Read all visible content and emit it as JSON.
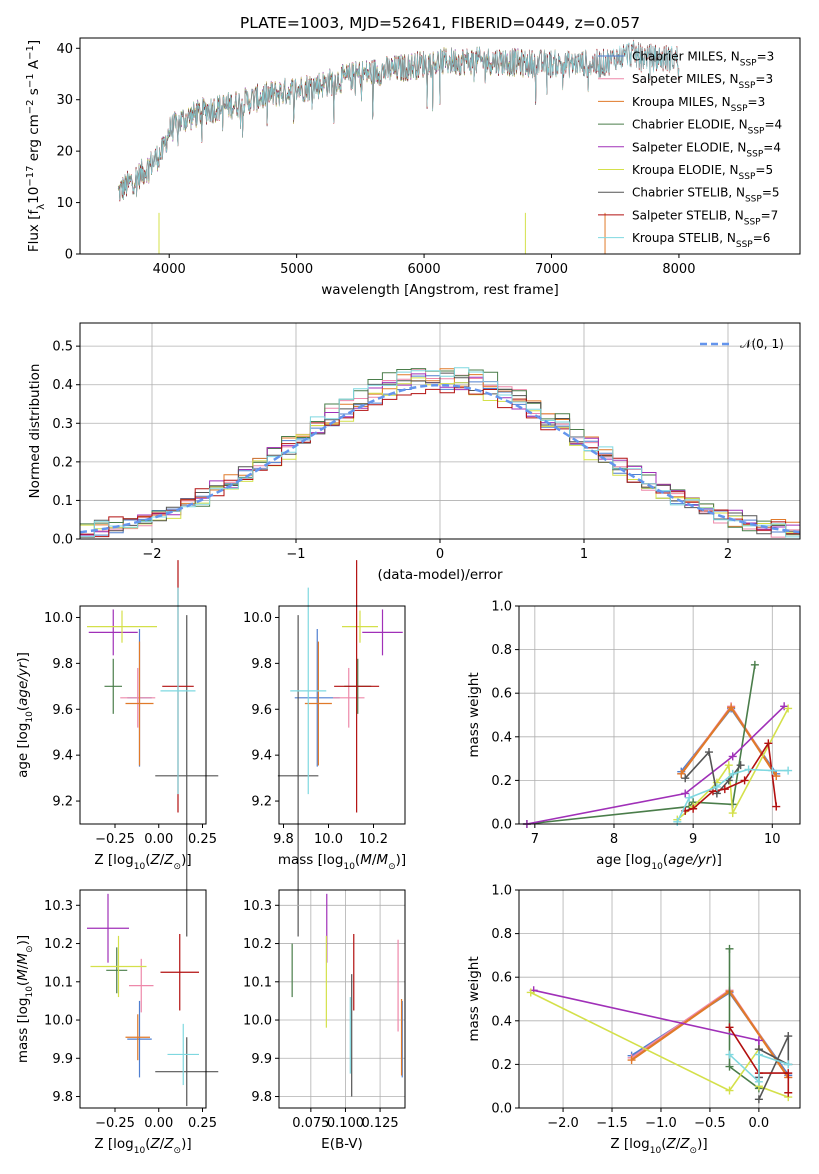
{
  "colors": {
    "Chabrier MILES": "#4f7fd0",
    "Salpeter MILES": "#ee88aa",
    "Kroupa MILES": "#e07a2a",
    "Chabrier ELODIE": "#4a7d4a",
    "Salpeter ELODIE": "#a030b8",
    "Kroupa ELODIE": "#d4e04a",
    "Chabrier STELIB": "#545454",
    "Salpeter STELIB": "#b21010",
    "Kroupa STELIB": "#7fd8e0"
  },
  "chart_data": [
    {
      "type": "line",
      "title": "PLATE=1003, MJD=52641, FIBERID=0449, z=0.057",
      "xlabel": "wavelength [Angstrom, rest frame]",
      "ylabel": "Flux [f_λ10^-17 erg cm^-2 s^-1 A^-1]",
      "xlim": [
        3300,
        8950
      ],
      "ylim": [
        0,
        42
      ],
      "xticks": [
        4000,
        5000,
        6000,
        7000,
        8000
      ],
      "yticks": [
        0,
        10,
        20,
        30,
        40
      ],
      "legend_position": "right",
      "spectrum_anchors": {
        "x": [
          3600,
          3700,
          3800,
          3950,
          4000,
          4100,
          4300,
          4500,
          4800,
          5000,
          5200,
          5500,
          5800,
          6000,
          6200,
          6400,
          6600,
          6800,
          7000,
          7200,
          7400,
          7600,
          7800
        ],
        "y": [
          12,
          14,
          16,
          20,
          24,
          26,
          28,
          29,
          31,
          32,
          33,
          35,
          36,
          37,
          37.5,
          37.5,
          37.5,
          37,
          37,
          37,
          37,
          39,
          38
        ]
      },
      "series": [
        {
          "name": "Chabrier MILES",
          "nssp": "3",
          "xrange": [
            3600,
            7420
          ]
        },
        {
          "name": "Salpeter MILES",
          "nssp": "3",
          "xrange": [
            3600,
            7420
          ]
        },
        {
          "name": "Kroupa MILES",
          "nssp": "3",
          "xrange": [
            3600,
            7420
          ]
        },
        {
          "name": "Chabrier ELODIE",
          "nssp": "4",
          "xrange": [
            3600,
            6800
          ]
        },
        {
          "name": "Salpeter ELODIE",
          "nssp": "4",
          "xrange": [
            3600,
            6800
          ]
        },
        {
          "name": "Kroupa ELODIE",
          "nssp": "5",
          "xrange": [
            3600,
            6800
          ]
        },
        {
          "name": "Chabrier STELIB",
          "nssp": "5",
          "xrange": [
            3600,
            8000
          ]
        },
        {
          "name": "Salpeter STELIB",
          "nssp": "7",
          "xrange": [
            3600,
            8000
          ]
        },
        {
          "name": "Kroupa STELIB",
          "nssp": "6",
          "xrange": [
            3600,
            8000
          ]
        }
      ]
    },
    {
      "type": "line",
      "xlabel": "(data-model)/error",
      "ylabel": "Normed distribution",
      "xlim": [
        -2.5,
        2.5
      ],
      "ylim": [
        0,
        0.56
      ],
      "xticks": [
        -2,
        -1,
        0,
        1,
        2
      ],
      "yticks": [
        0.0,
        0.1,
        0.2,
        0.3,
        0.4,
        0.5
      ],
      "grid": true,
      "legend_position": "top-right",
      "reference": {
        "name": "𝒩(0, 1)",
        "mu": 0,
        "sigma": 1
      },
      "bin_width": 0.1,
      "series": [
        {
          "name": "Chabrier MILES",
          "amp": 0.41,
          "sigma": 1.0
        },
        {
          "name": "Salpeter MILES",
          "amp": 0.43,
          "sigma": 0.98
        },
        {
          "name": "Kroupa MILES",
          "amp": 0.42,
          "sigma": 1.01
        },
        {
          "name": "Chabrier ELODIE",
          "amp": 0.45,
          "sigma": 0.97
        },
        {
          "name": "Salpeter ELODIE",
          "amp": 0.41,
          "sigma": 1.03
        },
        {
          "name": "Kroupa ELODIE",
          "amp": 0.4,
          "sigma": 0.99
        },
        {
          "name": "Chabrier STELIB",
          "amp": 0.42,
          "sigma": 1.0
        },
        {
          "name": "Salpeter STELIB",
          "amp": 0.4,
          "sigma": 1.02
        },
        {
          "name": "Kroupa STELIB",
          "amp": 0.43,
          "sigma": 0.99
        }
      ]
    },
    {
      "type": "scatter",
      "xlabel": "Z [log10(Z/Z⊙)]",
      "ylabel": "age [log10(age/yr)]",
      "xlim": [
        -0.45,
        0.27
      ],
      "ylim": [
        9.1,
        10.05
      ],
      "xticks": [
        -0.25,
        0.0,
        0.25
      ],
      "yticks": [
        9.2,
        9.4,
        9.6,
        9.8,
        10.0
      ],
      "points": [
        {
          "series": "Chabrier MILES",
          "x": -0.11,
          "xerr": 0.07,
          "y": 9.65,
          "yerr": 0.3
        },
        {
          "series": "Salpeter MILES",
          "x": -0.12,
          "xerr": 0.1,
          "y": 9.65,
          "yerr": 0.13
        },
        {
          "series": "Kroupa MILES",
          "x": -0.11,
          "xerr": 0.08,
          "y": 9.625,
          "yerr": 0.27
        },
        {
          "series": "Chabrier ELODIE",
          "x": -0.26,
          "xerr": 0.05,
          "y": 9.7,
          "yerr": 0.12
        },
        {
          "series": "Salpeter ELODIE",
          "x": -0.26,
          "xerr": 0.14,
          "y": 9.935,
          "yerr": 0.1
        },
        {
          "series": "Kroupa ELODIE",
          "x": -0.21,
          "xerr": 0.2,
          "y": 9.96,
          "yerr": 0.07
        },
        {
          "series": "Chabrier STELIB",
          "x": 0.16,
          "xerr": 0.18,
          "y": 9.31,
          "yerr": 0.7
        },
        {
          "series": "Salpeter STELIB",
          "x": 0.11,
          "xerr": 0.09,
          "y": 9.7,
          "yerr": 0.55
        },
        {
          "series": "Kroupa STELIB",
          "x": 0.11,
          "xerr": 0.1,
          "y": 9.68,
          "yerr": 0.45
        }
      ]
    },
    {
      "type": "scatter",
      "xlabel": "mass [log10(M/M⊙)]",
      "ylabel": "",
      "xlim": [
        9.78,
        10.34
      ],
      "ylim": [
        9.1,
        10.05
      ],
      "xticks": [
        9.8,
        10.0,
        10.2
      ],
      "yticks": [
        9.2,
        9.4,
        9.6,
        9.8,
        10.0
      ],
      "points": [
        {
          "series": "Chabrier MILES",
          "x": 9.95,
          "xerr": 0.1,
          "y": 9.65,
          "yerr": 0.3
        },
        {
          "series": "Salpeter MILES",
          "x": 10.09,
          "xerr": 0.07,
          "y": 9.65,
          "yerr": 0.13
        },
        {
          "series": "Kroupa MILES",
          "x": 9.955,
          "xerr": 0.06,
          "y": 9.625,
          "yerr": 0.27
        },
        {
          "series": "Chabrier ELODIE",
          "x": 10.13,
          "xerr": 0.06,
          "y": 9.7,
          "yerr": 0.12
        },
        {
          "series": "Salpeter ELODIE",
          "x": 10.24,
          "xerr": 0.09,
          "y": 9.935,
          "yerr": 0.1
        },
        {
          "series": "Kroupa ELODIE",
          "x": 10.14,
          "xerr": 0.08,
          "y": 9.96,
          "yerr": 0.07
        },
        {
          "series": "Chabrier STELIB",
          "x": 9.865,
          "xerr": 0.09,
          "y": 9.31,
          "yerr": 0.7
        },
        {
          "series": "Salpeter STELIB",
          "x": 10.125,
          "xerr": 0.1,
          "y": 9.7,
          "yerr": 0.55
        },
        {
          "series": "Kroupa STELIB",
          "x": 9.91,
          "xerr": 0.08,
          "y": 9.68,
          "yerr": 0.45
        }
      ]
    },
    {
      "type": "line",
      "xlabel": "age [log10(age/yr)]",
      "ylabel": "mass weight",
      "xlim": [
        6.8,
        10.35
      ],
      "ylim": [
        0,
        1.0
      ],
      "xticks": [
        7,
        8,
        9,
        10
      ],
      "yticks": [
        0.0,
        0.2,
        0.4,
        0.6,
        0.8,
        1.0
      ],
      "grid": true,
      "series": [
        {
          "name": "Chabrier MILES",
          "x": [
            8.85,
            9.48,
            10.05
          ],
          "y": [
            0.24,
            0.53,
            0.23
          ]
        },
        {
          "name": "Salpeter MILES",
          "x": [
            8.85,
            9.48,
            10.05
          ],
          "y": [
            0.23,
            0.54,
            0.22
          ]
        },
        {
          "name": "Kroupa MILES",
          "x": [
            8.85,
            9.48,
            10.05
          ],
          "y": [
            0.23,
            0.535,
            0.22
          ]
        },
        {
          "name": "Chabrier ELODIE",
          "x": [
            6.9,
            8.95,
            9.0,
            9.5,
            9.78
          ],
          "y": [
            0.0,
            0.08,
            0.1,
            0.09,
            0.73
          ]
        },
        {
          "name": "Salpeter ELODIE",
          "x": [
            6.9,
            8.9,
            9.5,
            10.15
          ],
          "y": [
            0.0,
            0.14,
            0.31,
            0.54
          ]
        },
        {
          "name": "Kroupa ELODIE",
          "x": [
            8.8,
            9.0,
            9.3,
            9.45,
            9.5,
            10.2
          ],
          "y": [
            0.02,
            0.08,
            0.19,
            0.27,
            0.05,
            0.53
          ]
        },
        {
          "name": "Chabrier STELIB",
          "x": [
            8.9,
            9.2,
            9.3,
            9.45,
            9.6
          ],
          "y": [
            0.21,
            0.33,
            0.14,
            0.2,
            0.27
          ]
        },
        {
          "name": "Salpeter STELIB",
          "x": [
            8.9,
            9.0,
            9.25,
            9.4,
            9.65,
            9.95,
            10.05
          ],
          "y": [
            0.06,
            0.07,
            0.15,
            0.16,
            0.2,
            0.37,
            0.08
          ]
        },
        {
          "name": "Kroupa STELIB",
          "x": [
            8.8,
            8.95,
            9.3,
            9.5,
            9.7,
            10.0,
            10.2
          ],
          "y": [
            0.01,
            0.12,
            0.17,
            0.23,
            0.25,
            0.245,
            0.245
          ]
        }
      ]
    },
    {
      "type": "scatter",
      "xlabel": "Z [log10(Z/Z⊙)]",
      "ylabel": "mass [log10(M/M⊙)]",
      "xlim": [
        -0.45,
        0.27
      ],
      "ylim": [
        9.77,
        10.34
      ],
      "xticks": [
        -0.25,
        0.0,
        0.25
      ],
      "yticks": [
        9.8,
        9.9,
        10.0,
        10.1,
        10.2,
        10.3
      ],
      "points": [
        {
          "series": "Chabrier MILES",
          "x": -0.11,
          "xerr": 0.07,
          "y": 9.95,
          "yerr": 0.1
        },
        {
          "series": "Salpeter MILES",
          "x": -0.1,
          "xerr": 0.07,
          "y": 10.09,
          "yerr": 0.07
        },
        {
          "series": "Kroupa MILES",
          "x": -0.12,
          "xerr": 0.07,
          "y": 9.955,
          "yerr": 0.06
        },
        {
          "series": "Chabrier ELODIE",
          "x": -0.24,
          "xerr": 0.06,
          "y": 10.13,
          "yerr": 0.06
        },
        {
          "series": "Salpeter ELODIE",
          "x": -0.29,
          "xerr": 0.12,
          "y": 10.24,
          "yerr": 0.09
        },
        {
          "series": "Kroupa ELODIE",
          "x": -0.23,
          "xerr": 0.16,
          "y": 10.14,
          "yerr": 0.08
        },
        {
          "series": "Chabrier STELIB",
          "x": 0.16,
          "xerr": 0.18,
          "y": 9.865,
          "yerr": 0.09
        },
        {
          "series": "Salpeter STELIB",
          "x": 0.12,
          "xerr": 0.11,
          "y": 10.125,
          "yerr": 0.1
        },
        {
          "series": "Kroupa STELIB",
          "x": 0.14,
          "xerr": 0.09,
          "y": 9.91,
          "yerr": 0.08
        }
      ]
    },
    {
      "type": "scatter",
      "xlabel": "E(B-V)",
      "ylabel": "",
      "xlim": [
        0.052,
        0.143
      ],
      "ylim": [
        9.77,
        10.34
      ],
      "xticks": [
        0.075,
        0.1,
        0.125
      ],
      "yticks": [
        9.8,
        9.9,
        10.0,
        10.1,
        10.2,
        10.3
      ],
      "grid": true,
      "points": [
        {
          "series": "Chabrier MILES",
          "x": 0.141,
          "xerr": 0,
          "y": 9.95,
          "yerr": 0.1
        },
        {
          "series": "Salpeter MILES",
          "x": 0.138,
          "xerr": 0,
          "y": 10.09,
          "yerr": 0.12
        },
        {
          "series": "Kroupa MILES",
          "x": 0.1405,
          "xerr": 0,
          "y": 9.955,
          "yerr": 0.1
        },
        {
          "series": "Chabrier ELODIE",
          "x": 0.0615,
          "xerr": 0,
          "y": 10.13,
          "yerr": 0.07
        },
        {
          "series": "Salpeter ELODIE",
          "x": 0.0865,
          "xerr": 0,
          "y": 10.24,
          "yerr": 0.09
        },
        {
          "series": "Kroupa ELODIE",
          "x": 0.0862,
          "xerr": 0,
          "y": 10.1,
          "yerr": 0.12
        },
        {
          "series": "Chabrier STELIB",
          "x": 0.1045,
          "xerr": 0,
          "y": 9.96,
          "yerr": 0.16
        },
        {
          "series": "Salpeter STELIB",
          "x": 0.106,
          "xerr": 0,
          "y": 10.125,
          "yerr": 0.1
        },
        {
          "series": "Kroupa STELIB",
          "x": 0.1035,
          "xerr": 0,
          "y": 9.96,
          "yerr": 0.1
        }
      ]
    },
    {
      "type": "line",
      "xlabel": "Z [log10(Z/Z⊙)]",
      "ylabel": "mass weight",
      "xlim": [
        -2.45,
        0.42
      ],
      "ylim": [
        0,
        1.0
      ],
      "xticks": [
        -2.0,
        -1.5,
        -1.0,
        -0.5,
        0.0
      ],
      "yticks": [
        0.0,
        0.2,
        0.4,
        0.6,
        0.8,
        1.0
      ],
      "grid": true,
      "series": [
        {
          "name": "Chabrier MILES",
          "x": [
            -1.3,
            -0.3,
            0.3
          ],
          "y": [
            0.24,
            0.53,
            0.15
          ]
        },
        {
          "name": "Salpeter MILES",
          "x": [
            -1.3,
            -0.3,
            0.3
          ],
          "y": [
            0.23,
            0.54,
            0.14
          ]
        },
        {
          "name": "Kroupa MILES",
          "x": [
            -1.3,
            -0.3,
            0.3
          ],
          "y": [
            0.22,
            0.535,
            0.14
          ]
        },
        {
          "name": "Chabrier ELODIE",
          "x": [
            -0.3,
            -0.3,
            0.0,
            0.0
          ],
          "y": [
            0.73,
            0.19,
            0.09,
            0.27
          ]
        },
        {
          "name": "Salpeter ELODIE",
          "x": [
            -2.3,
            0.0,
            0.0
          ],
          "y": [
            0.54,
            0.31,
            0.14
          ]
        },
        {
          "name": "Kroupa ELODIE",
          "x": [
            -2.33,
            -0.3,
            0.0,
            0.0,
            0.3
          ],
          "y": [
            0.53,
            0.08,
            0.27,
            0.1,
            0.05
          ]
        },
        {
          "name": "Chabrier STELIB",
          "x": [
            0.0,
            0.3,
            0.3,
            0.0,
            0.0
          ],
          "y": [
            0.04,
            0.33,
            0.2,
            0.27,
            0.14
          ]
        },
        {
          "name": "Salpeter STELIB",
          "x": [
            -0.3,
            0.0,
            0.3,
            0.3
          ],
          "y": [
            0.37,
            0.16,
            0.16,
            0.07
          ]
        },
        {
          "name": "Kroupa STELIB",
          "x": [
            -0.3,
            0.0,
            0.0,
            0.3
          ],
          "y": [
            0.245,
            0.12,
            0.245,
            0.2
          ]
        }
      ]
    }
  ]
}
